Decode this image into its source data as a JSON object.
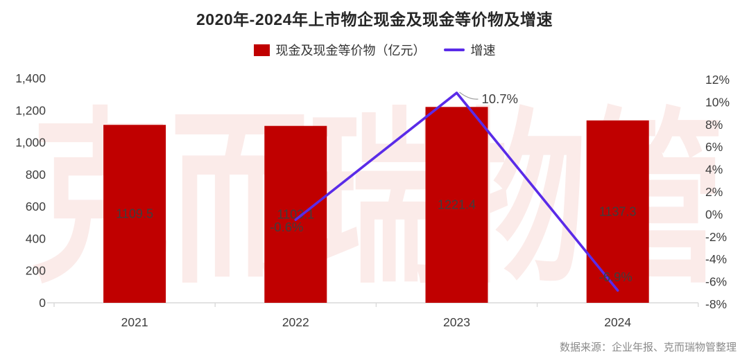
{
  "title": "2020年-2024年上市物企现金及现金等价物及增速",
  "legend": {
    "items": [
      {
        "label": "现金及现金等价物（亿元）",
        "swatch": "square",
        "color": "#C00000"
      },
      {
        "label": "增速",
        "swatch": "line",
        "color": "#5A2BE8"
      }
    ]
  },
  "watermark": "克而瑞物管",
  "source": "数据来源：企业年报、克而瑞物管整理",
  "colors": {
    "bar": "#C00000",
    "line": "#5A2BE8",
    "axis_text": "#3D3D3D",
    "bar_label": "#3E3E3E",
    "point_label": "#3E3E3E",
    "axis_line": "#D9D9D9",
    "watermark": "#FBEBE9",
    "source_text": "#8A8A8A",
    "callout_line": "#9B9B9B"
  },
  "chart_data": {
    "type": "bar+line",
    "categories": [
      "2021",
      "2022",
      "2023",
      "2024"
    ],
    "series": [
      {
        "name": "现金及现金等价物（亿元）",
        "type": "bar",
        "axis": "left",
        "values": [
          1109.5,
          1103.1,
          1221.4,
          1137.3
        ],
        "value_labels": [
          "1109.5",
          "1103.1",
          "1221.4",
          "1137.3"
        ]
      },
      {
        "name": "增速",
        "type": "line",
        "axis": "right",
        "values": [
          null,
          -0.6,
          10.7,
          -6.9
        ],
        "point_labels": [
          null,
          "-0.6%",
          "10.7%",
          "-6.9%"
        ],
        "label_offsets": [
          null,
          [
            -13,
            11
          ],
          [
            36,
            8
          ],
          [
            -3,
            -19
          ]
        ],
        "callout_index": 2
      }
    ],
    "left_axis": {
      "min": 0,
      "max": 1400,
      "step": 200,
      "tick_labels": [
        "1,400",
        "1,200",
        "1,000",
        "800",
        "600",
        "400",
        "200",
        "0"
      ]
    },
    "right_axis": {
      "min": -8,
      "max": 12,
      "step": 2,
      "tick_labels": [
        "12%",
        "10%",
        "8%",
        "6%",
        "4%",
        "2%",
        "0%",
        "-2%",
        "-4%",
        "-6%",
        "-8%"
      ]
    },
    "grid": false,
    "legend_position": "top"
  }
}
